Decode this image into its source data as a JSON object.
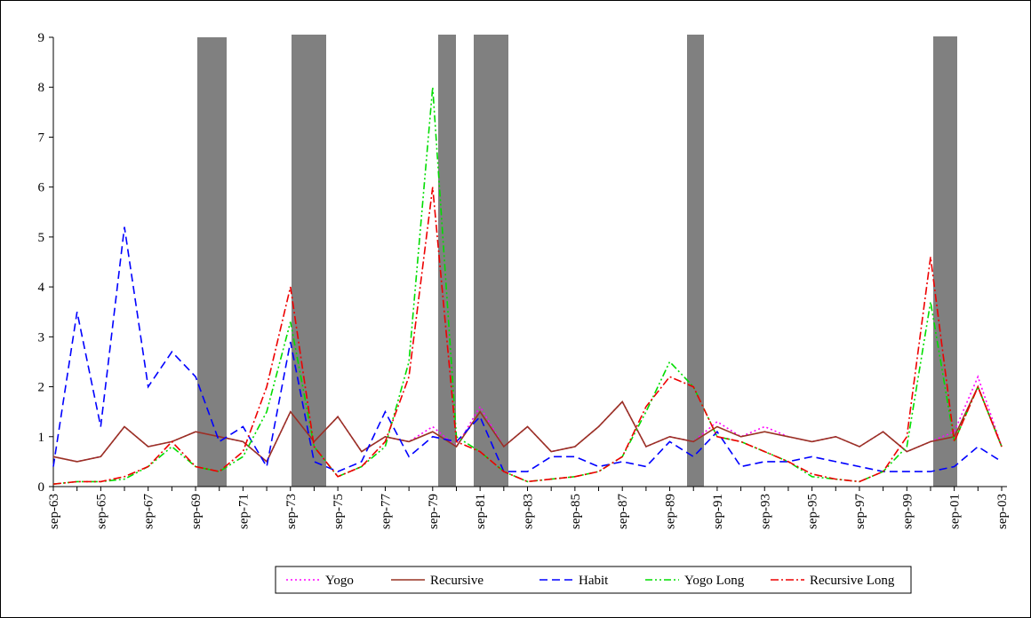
{
  "chart_data": {
    "type": "line",
    "categories": [
      "sep-63",
      null,
      "sep-65",
      null,
      "sep-67",
      null,
      "sep-69",
      null,
      "sep-71",
      null,
      "sep-73",
      null,
      "sep-75",
      null,
      "sep-77",
      null,
      "sep-79",
      null,
      "sep-81",
      null,
      "sep-83",
      null,
      "sep-85",
      null,
      "sep-87",
      null,
      "sep-89",
      null,
      "sep-91",
      null,
      "sep-93",
      null,
      "sep-95",
      null,
      "sep-97",
      null,
      "sep-99",
      null,
      "sep-01",
      null,
      "sep-03"
    ],
    "series": [
      {
        "name": "Yogo",
        "color": "#ff00ff",
        "dash": "2,3",
        "values": [
          0.6,
          0.5,
          0.6,
          1.2,
          0.8,
          0.9,
          1.1,
          1.0,
          0.9,
          0.5,
          1.5,
          0.9,
          1.4,
          0.7,
          1.0,
          0.9,
          1.2,
          0.8,
          1.6,
          0.8,
          1.2,
          0.7,
          0.8,
          1.2,
          1.7,
          0.8,
          1.0,
          0.9,
          1.3,
          1.0,
          1.2,
          1.0,
          0.9,
          1.0,
          0.8,
          1.1,
          0.7,
          0.9,
          1.1,
          2.2,
          0.8
        ]
      },
      {
        "name": "Recursive",
        "color": "#993322",
        "dash": "none",
        "values": [
          0.6,
          0.5,
          0.6,
          1.2,
          0.8,
          0.9,
          1.1,
          1.0,
          0.9,
          0.5,
          1.5,
          0.9,
          1.4,
          0.7,
          1.0,
          0.9,
          1.1,
          0.8,
          1.5,
          0.8,
          1.2,
          0.7,
          0.8,
          1.2,
          1.7,
          0.8,
          1.0,
          0.9,
          1.2,
          1.0,
          1.1,
          1.0,
          0.9,
          1.0,
          0.8,
          1.1,
          0.7,
          0.9,
          1.0,
          2.0,
          0.8
        ]
      },
      {
        "name": "Habit",
        "color": "#0000ff",
        "dash": "9,5",
        "values": [
          0.4,
          3.5,
          1.2,
          5.2,
          2.0,
          2.7,
          2.2,
          0.9,
          1.2,
          0.4,
          2.9,
          0.5,
          0.3,
          0.5,
          1.5,
          0.6,
          1.0,
          0.9,
          1.4,
          0.3,
          0.3,
          0.6,
          0.6,
          0.4,
          0.5,
          0.4,
          0.9,
          0.6,
          1.1,
          0.4,
          0.5,
          0.5,
          0.6,
          0.5,
          0.4,
          0.3,
          0.3,
          0.3,
          0.4,
          0.8,
          0.5
        ]
      },
      {
        "name": "Yogo Long",
        "color": "#00dd00",
        "dash": "8,3,2,3,2,3",
        "values": [
          0.05,
          0.1,
          0.1,
          0.15,
          0.4,
          0.8,
          0.4,
          0.3,
          0.6,
          1.5,
          3.3,
          0.8,
          0.2,
          0.4,
          0.8,
          2.5,
          8.0,
          1.0,
          0.7,
          0.3,
          0.1,
          0.15,
          0.2,
          0.3,
          0.6,
          1.5,
          2.5,
          2.0,
          1.0,
          0.9,
          0.7,
          0.5,
          0.2,
          0.15,
          0.1,
          0.3,
          0.8,
          3.7,
          0.9,
          2.0,
          0.8
        ]
      },
      {
        "name": "Recursive Long",
        "color": "#ee0000",
        "dash": "9,3,2,3",
        "values": [
          0.05,
          0.1,
          0.1,
          0.2,
          0.4,
          0.9,
          0.4,
          0.3,
          0.7,
          2.0,
          4.0,
          0.8,
          0.2,
          0.4,
          0.9,
          2.2,
          6.0,
          0.9,
          0.7,
          0.3,
          0.1,
          0.15,
          0.2,
          0.3,
          0.6,
          1.6,
          2.2,
          2.0,
          1.0,
          0.9,
          0.7,
          0.5,
          0.25,
          0.15,
          0.1,
          0.3,
          1.0,
          4.6,
          0.9,
          2.0,
          0.8
        ]
      }
    ],
    "ylim": [
      0,
      9
    ],
    "yticks": [
      0,
      1,
      2,
      3,
      4,
      5,
      6,
      7,
      8,
      9
    ]
  }
}
